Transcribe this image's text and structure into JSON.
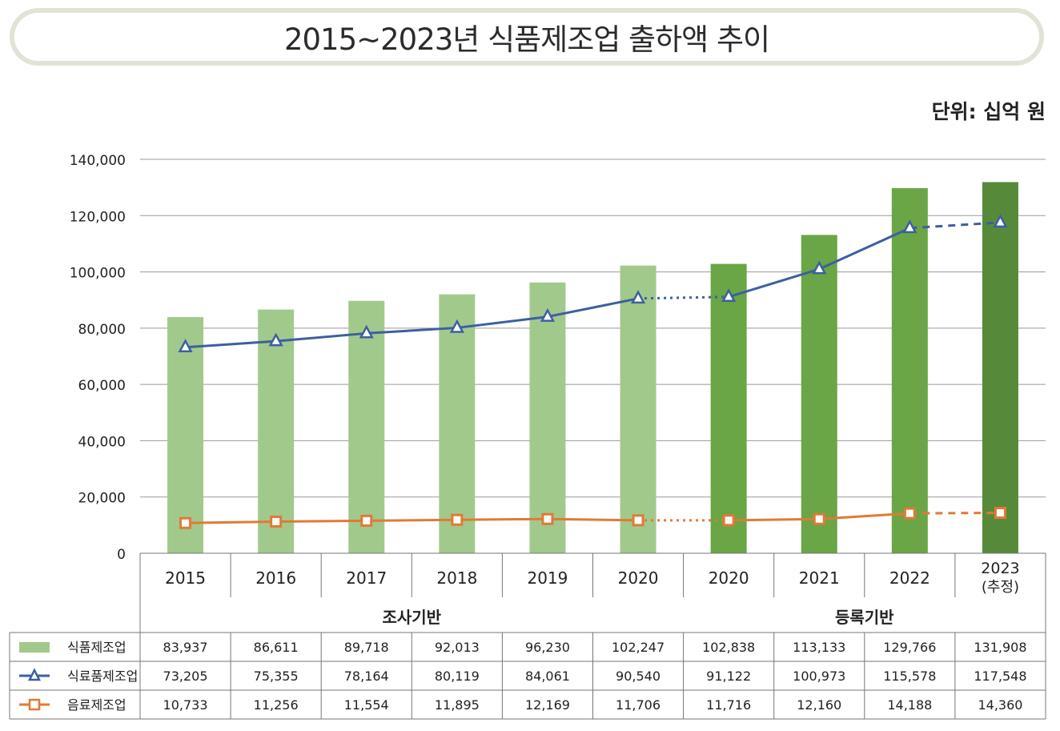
{
  "title": "2015~2023년 식품제조업 출하액 추이",
  "unit_label": "단위: 십억 원",
  "chart_data": {
    "type": "bar",
    "title": "2015~2023년 식품제조업 출하액 추이",
    "ylim": [
      0,
      140000
    ],
    "yticks": [
      0,
      20000,
      40000,
      60000,
      80000,
      100000,
      120000,
      140000
    ],
    "ytick_labels": [
      "0",
      "20,000",
      "40,000",
      "60,000",
      "80,000",
      "100,000",
      "120,000",
      "140,000"
    ],
    "categories": [
      "2015",
      "2016",
      "2017",
      "2018",
      "2019",
      "2020",
      "2020",
      "2021",
      "2022",
      "2023\n(추정)"
    ],
    "groups": [
      {
        "label": "조사기반",
        "count": 6
      },
      {
        "label": "등록기반",
        "count": 4
      }
    ],
    "series": [
      {
        "name": "식품제조업",
        "type": "bar",
        "values": [
          83937,
          86611,
          89718,
          92013,
          96230,
          102247,
          102838,
          113133,
          129766,
          131908
        ],
        "labels": [
          "83,937",
          "86,611",
          "89,718",
          "92,013",
          "96,230",
          "102,247",
          "102,838",
          "113,133",
          "129,766",
          "131,908"
        ],
        "colors": [
          "#a2c98c",
          "#a2c98c",
          "#a2c98c",
          "#a2c98c",
          "#a2c98c",
          "#a2c98c",
          "#6aa645",
          "#6aa645",
          "#6aa645",
          "#568a3a"
        ]
      },
      {
        "name": "식료품제조업",
        "type": "line",
        "marker": "triangle",
        "color": "#3d5fa0",
        "values": [
          73205,
          75355,
          78164,
          80119,
          84061,
          90540,
          91122,
          100973,
          115578,
          117548
        ],
        "labels": [
          "73,205",
          "75,355",
          "78,164",
          "80,119",
          "84,061",
          "90,540",
          "91,122",
          "100,973",
          "115,578",
          "117,548"
        ]
      },
      {
        "name": "음료제조업",
        "type": "line",
        "marker": "square",
        "color": "#e07a36",
        "values": [
          10733,
          11256,
          11554,
          11895,
          12169,
          11706,
          11716,
          12160,
          14188,
          14360
        ],
        "labels": [
          "10,733",
          "11,256",
          "11,554",
          "11,895",
          "12,169",
          "11,706",
          "11,716",
          "12,160",
          "14,188",
          "14,360"
        ]
      }
    ]
  }
}
